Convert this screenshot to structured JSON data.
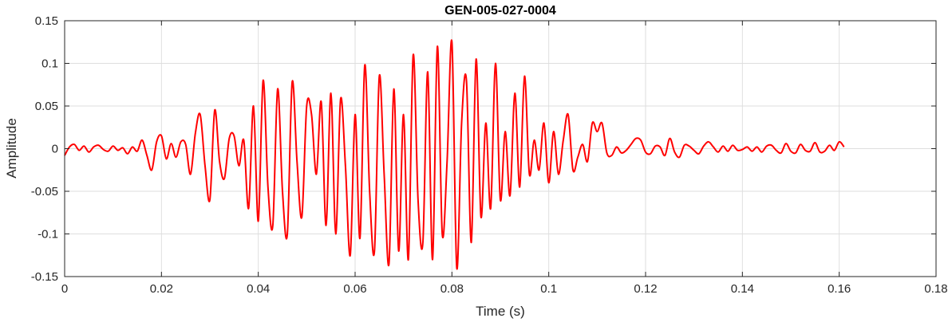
{
  "chart_data": {
    "type": "line",
    "title": "GEN-005-027-0004",
    "xlabel": "Time (s)",
    "ylabel": "Amplitude",
    "xlim": [
      0,
      0.18
    ],
    "ylim": [
      -0.15,
      0.15
    ],
    "xticks": [
      0,
      0.02,
      0.04,
      0.06,
      0.08,
      0.1,
      0.12,
      0.14,
      0.16,
      0.18
    ],
    "xtick_labels": [
      "0",
      "0.02",
      "0.04",
      "0.06",
      "0.08",
      "0.1",
      "0.12",
      "0.14",
      "0.16",
      "0.18"
    ],
    "yticks": [
      -0.15,
      -0.1,
      -0.05,
      0,
      0.05,
      0.1,
      0.15
    ],
    "ytick_labels": [
      "-0.15",
      "-0.1",
      "-0.05",
      "0",
      "0.05",
      "0.1",
      "0.15"
    ],
    "grid": true,
    "series": [
      {
        "color": "#ff0000",
        "x": [
          0,
          0.001,
          0.002,
          0.003,
          0.004,
          0.005,
          0.006,
          0.007,
          0.008,
          0.009,
          0.01,
          0.011,
          0.012,
          0.013,
          0.014,
          0.015,
          0.016,
          0.017,
          0.018,
          0.019,
          0.02,
          0.021,
          0.022,
          0.023,
          0.024,
          0.025,
          0.026,
          0.027,
          0.028,
          0.029,
          0.03,
          0.031,
          0.032,
          0.033,
          0.034,
          0.035,
          0.036,
          0.037,
          0.038,
          0.039,
          0.04,
          0.041,
          0.042,
          0.043,
          0.044,
          0.045,
          0.046,
          0.047,
          0.048,
          0.049,
          0.05,
          0.051,
          0.052,
          0.053,
          0.054,
          0.055,
          0.056,
          0.057,
          0.058,
          0.059,
          0.06,
          0.061,
          0.062,
          0.063,
          0.064,
          0.065,
          0.066,
          0.067,
          0.068,
          0.069,
          0.07,
          0.071,
          0.072,
          0.073,
          0.074,
          0.075,
          0.076,
          0.077,
          0.078,
          0.079,
          0.08,
          0.081,
          0.082,
          0.083,
          0.084,
          0.085,
          0.086,
          0.087,
          0.088,
          0.089,
          0.09,
          0.091,
          0.092,
          0.093,
          0.094,
          0.095,
          0.096,
          0.097,
          0.098,
          0.099,
          0.1,
          0.101,
          0.102,
          0.103,
          0.104,
          0.105,
          0.106,
          0.107,
          0.108,
          0.109,
          0.11,
          0.111,
          0.112,
          0.113,
          0.114,
          0.115,
          0.116,
          0.117,
          0.118,
          0.119,
          0.12,
          0.121,
          0.122,
          0.123,
          0.124,
          0.125,
          0.126,
          0.127,
          0.128,
          0.129,
          0.13,
          0.131,
          0.132,
          0.133,
          0.134,
          0.135,
          0.136,
          0.137,
          0.138,
          0.139,
          0.14,
          0.141,
          0.142,
          0.143,
          0.144,
          0.145,
          0.146,
          0.147,
          0.148,
          0.149,
          0.15,
          0.151,
          0.152,
          0.153,
          0.154,
          0.155,
          0.156,
          0.157,
          0.158,
          0.159,
          0.16,
          0.161
        ],
        "y": [
          -0.008,
          0.002,
          0.005,
          -0.002,
          0.003,
          -0.004,
          0.002,
          0.004,
          -0.001,
          -0.003,
          0.003,
          -0.002,
          0.001,
          -0.006,
          0.002,
          -0.003,
          0.01,
          -0.008,
          -0.025,
          0.008,
          0.015,
          -0.012,
          0.006,
          -0.01,
          0.008,
          0.005,
          -0.03,
          0.018,
          0.04,
          -0.02,
          -0.06,
          0.045,
          -0.015,
          -0.035,
          0.012,
          0.015,
          -0.02,
          0.01,
          -0.07,
          0.05,
          -0.085,
          0.08,
          -0.045,
          -0.09,
          0.07,
          -0.05,
          -0.1,
          0.078,
          -0.015,
          -0.08,
          0.05,
          0.04,
          -0.03,
          0.055,
          -0.09,
          0.065,
          -0.1,
          0.058,
          -0.02,
          -0.125,
          0.04,
          -0.105,
          0.098,
          -0.05,
          -0.12,
          0.085,
          -0.03,
          -0.135,
          0.07,
          -0.12,
          0.04,
          -0.13,
          0.11,
          -0.06,
          -0.11,
          0.09,
          -0.13,
          0.12,
          -0.1,
          -0.015,
          0.125,
          -0.14,
          0.03,
          0.08,
          -0.11,
          0.105,
          -0.08,
          0.03,
          -0.07,
          0.1,
          -0.06,
          0.02,
          -0.055,
          0.065,
          -0.045,
          0.085,
          -0.03,
          0.01,
          -0.025,
          0.03,
          -0.04,
          0.02,
          -0.03,
          0.01,
          0.04,
          -0.025,
          -0.01,
          0.005,
          -0.015,
          0.03,
          0.02,
          0.03,
          -0.005,
          -0.008,
          0.002,
          -0.005,
          -0.002,
          0.005,
          0.012,
          0.01,
          -0.004,
          -0.006,
          0.003,
          0.002,
          -0.008,
          0.012,
          -0.004,
          -0.01,
          0.004,
          0.003,
          -0.002,
          -0.006,
          0.003,
          0.008,
          0.002,
          -0.004,
          0.003,
          -0.003,
          0.004,
          -0.002,
          -0.001,
          0.002,
          -0.003,
          0.002,
          -0.004,
          0.003,
          0.004,
          -0.002,
          -0.005,
          0.006,
          -0.003,
          -0.005,
          0.005,
          -0.002,
          -0.003,
          0.007,
          -0.004,
          -0.003,
          0.004,
          -0.002,
          0.008,
          0.002
        ]
      }
    ]
  }
}
